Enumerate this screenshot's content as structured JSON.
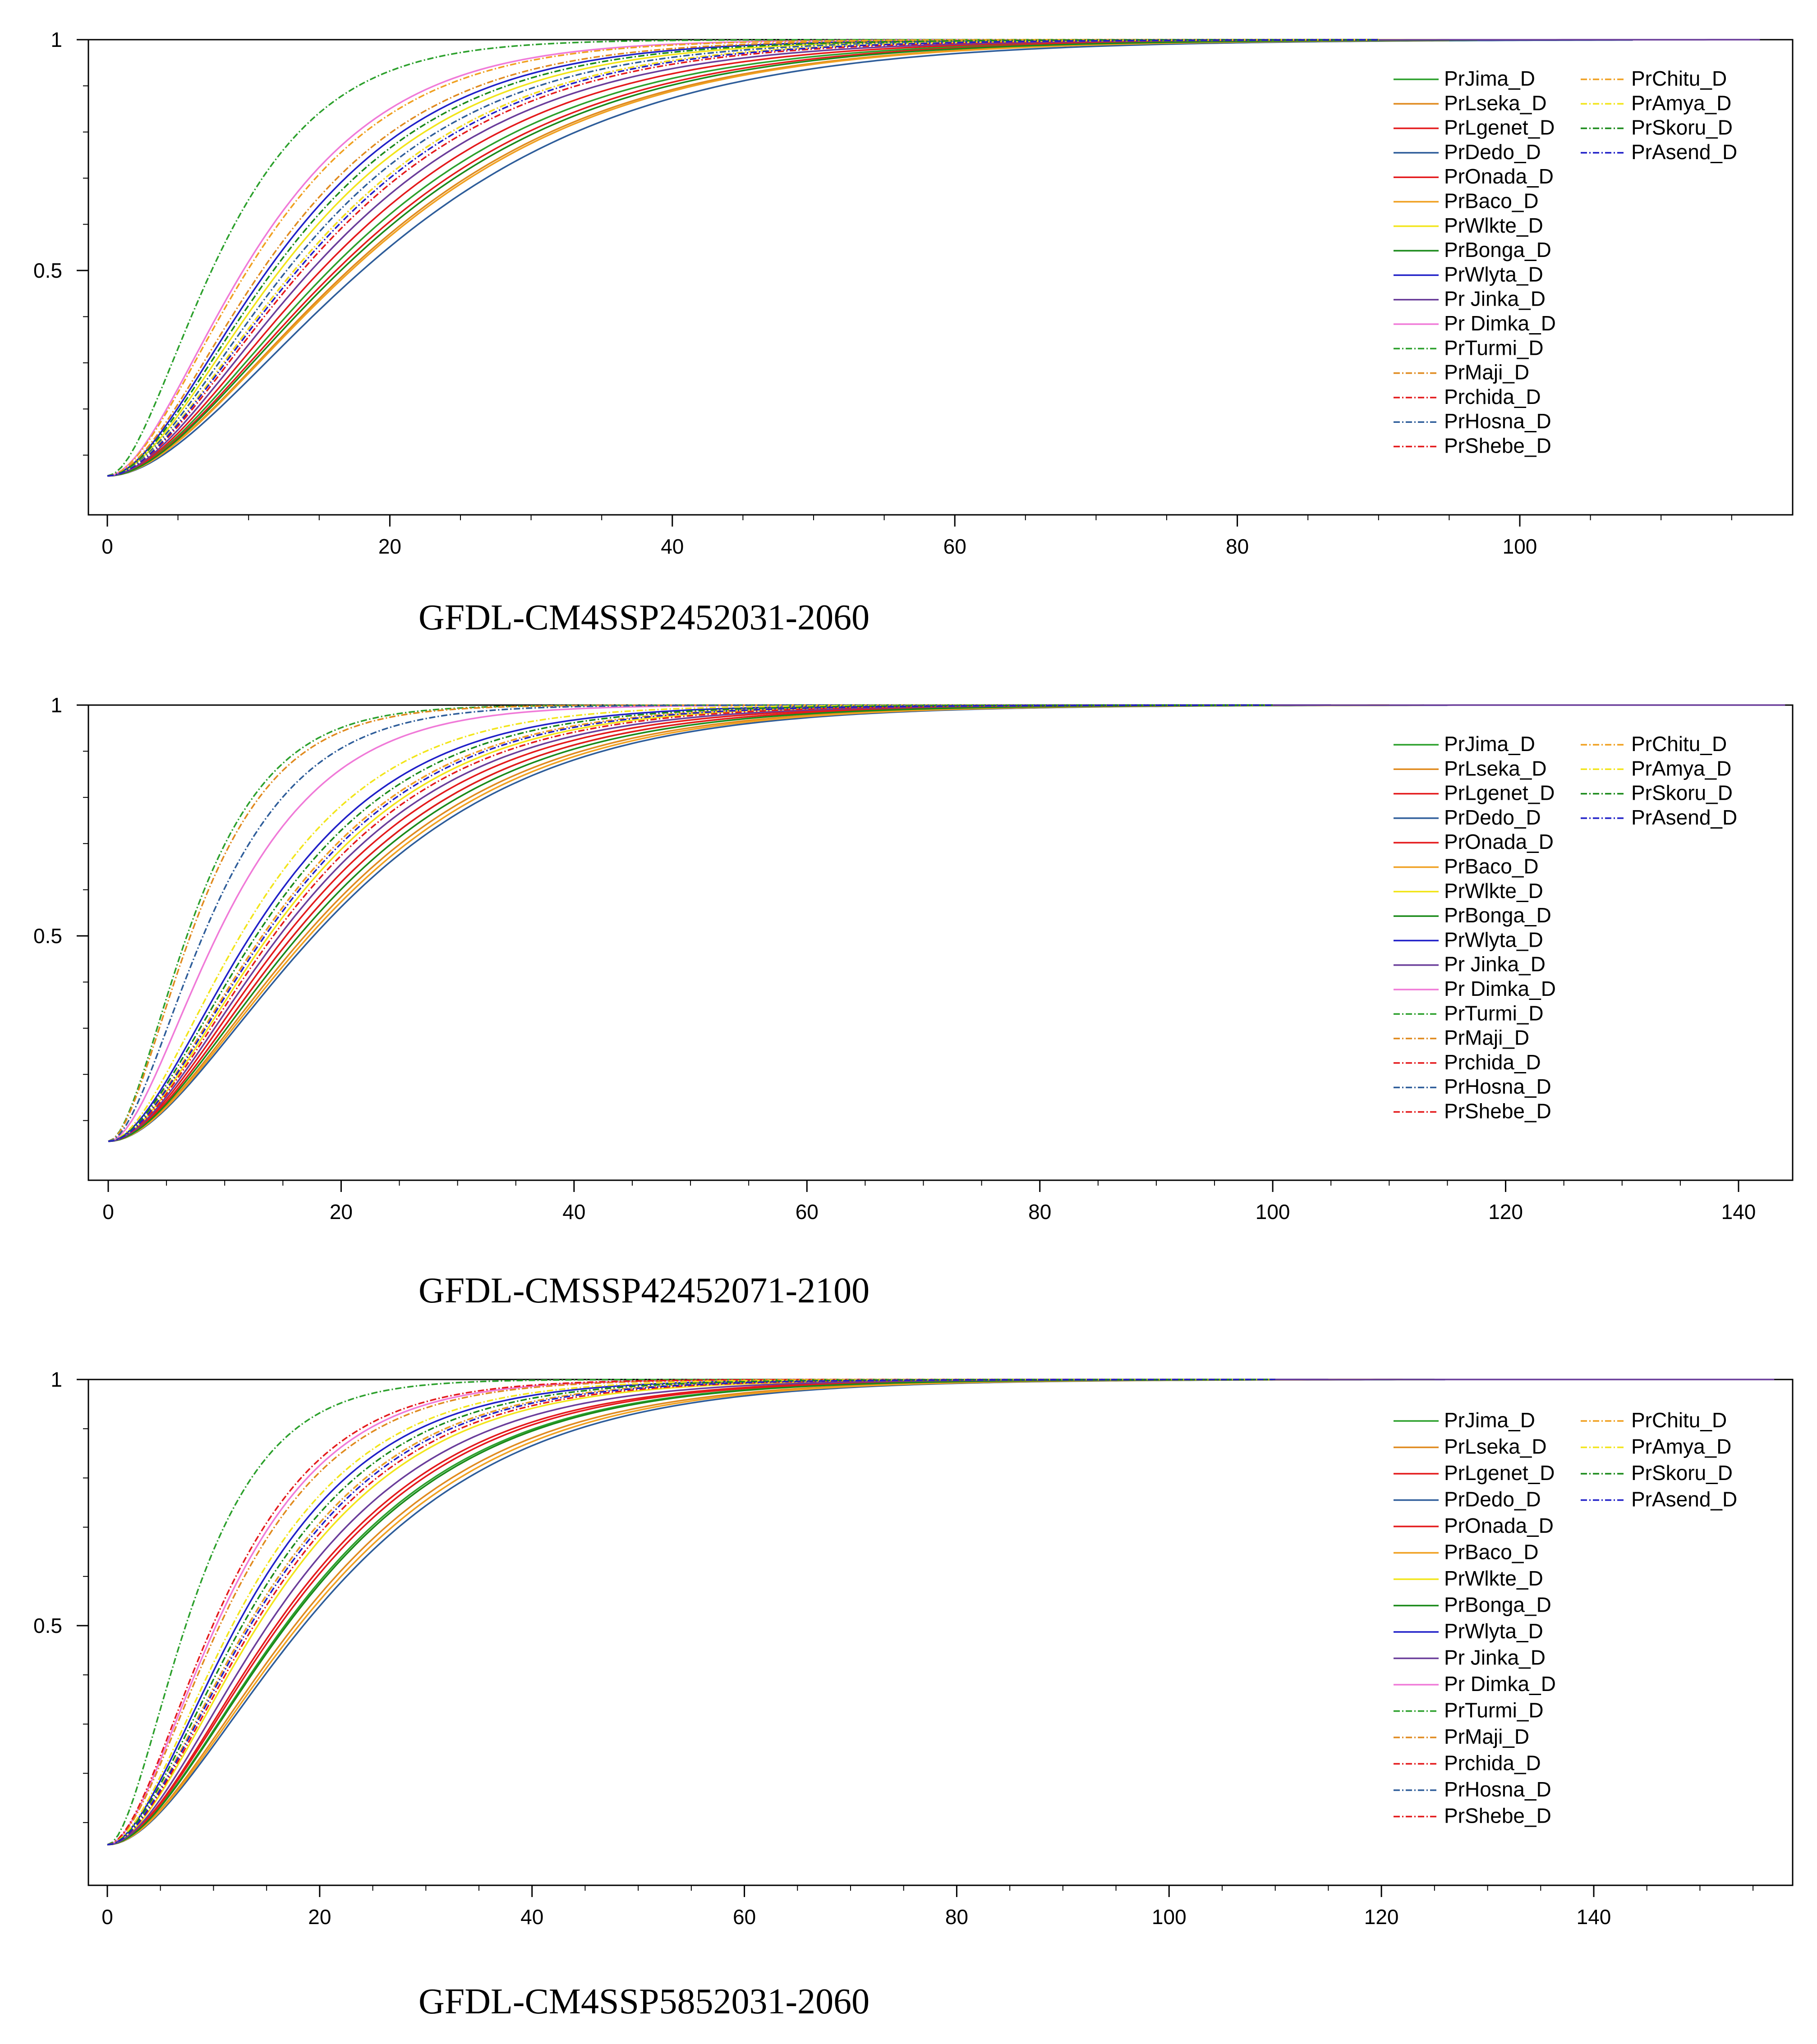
{
  "chart_data": [
    {
      "type": "line",
      "title": "",
      "caption": "GFDL-CM4SSP2452031-2060",
      "xlabel": "",
      "ylabel": "",
      "xlim": [
        0,
        118
      ],
      "ylim": [
        0,
        1
      ],
      "x_ticks": [
        0,
        20,
        40,
        60,
        80,
        100
      ],
      "x_minor_step": 5,
      "y_ticks": [
        {
          "v": 0.5,
          "label": "0.5"
        },
        {
          "v": 1,
          "label": "1"
        }
      ],
      "y_minor_step": 0.1,
      "legend_position": "top-right",
      "series": [
        {
          "name": "PrJima_D",
          "color": "#2ca02c",
          "dashed": false,
          "k": 0.101,
          "x_end": 97
        },
        {
          "name": "PrLseka_D",
          "color": "#e08a1e",
          "dashed": false,
          "k": 0.093,
          "x_end": 95
        },
        {
          "name": "PrLgenet_D",
          "color": "#e41a1c",
          "dashed": false,
          "k": 0.105,
          "x_end": 92
        },
        {
          "name": "PrDedo_D",
          "color": "#2e5d9a",
          "dashed": false,
          "k": 0.088,
          "x_end": 108
        },
        {
          "name": "PrOnada_D",
          "color": "#e41a1c",
          "dashed": false,
          "k": 0.098,
          "x_end": 95
        },
        {
          "name": "PrBaco_D",
          "color": "#f0a020",
          "dashed": false,
          "k": 0.092,
          "x_end": 95
        },
        {
          "name": "PrWlkte_D",
          "color": "#f2e51a",
          "dashed": false,
          "k": 0.13,
          "x_end": 95
        },
        {
          "name": "PrBonga_D",
          "color": "#1a8a1a",
          "dashed": false,
          "k": 0.096,
          "x_end": 97
        },
        {
          "name": "PrWlyta_D",
          "color": "#2020c8",
          "dashed": false,
          "k": 0.14,
          "x_end": 90
        },
        {
          "name": "Pr Jinka_D",
          "color": "#6a3d9a",
          "dashed": false,
          "k": 0.11,
          "x_end": 117
        },
        {
          "name": "Pr Dimka_D",
          "color": "#f07ad8",
          "dashed": false,
          "k": 0.165,
          "x_end": 90
        },
        {
          "name": "PrTurmi_D",
          "color": "#2ca02c",
          "dashed": true,
          "k": 0.215,
          "x_end": 90
        },
        {
          "name": "PrMaji_D",
          "color": "#e08a1e",
          "dashed": true,
          "k": 0.145,
          "x_end": 90
        },
        {
          "name": "Prchida_D",
          "color": "#e41a1c",
          "dashed": true,
          "k": 0.12,
          "x_end": 90
        },
        {
          "name": "PrHosna_D",
          "color": "#2e5d9a",
          "dashed": true,
          "k": 0.125,
          "x_end": 90
        },
        {
          "name": "PrShebe_D",
          "color": "#e41a1c",
          "dashed": true,
          "k": 0.115,
          "x_end": 90
        },
        {
          "name": "PrChitu_D",
          "color": "#f0a020",
          "dashed": true,
          "k": 0.16,
          "x_end": 90
        },
        {
          "name": "PrAmya_D",
          "color": "#f2e51a",
          "dashed": true,
          "k": 0.12,
          "x_end": 90
        },
        {
          "name": "PrSkoru_D",
          "color": "#1a8a1a",
          "dashed": true,
          "k": 0.135,
          "x_end": 90
        },
        {
          "name": "PrAsend_D",
          "color": "#2020c8",
          "dashed": true,
          "k": 0.118,
          "x_end": 90
        }
      ]
    },
    {
      "type": "line",
      "title": "",
      "caption": "GFDL-CMSSP42452071-2100",
      "xlabel": "",
      "ylabel": "",
      "xlim": [
        0,
        145
      ],
      "ylim": [
        0,
        1
      ],
      "x_ticks": [
        0,
        20,
        40,
        60,
        80,
        100,
        120,
        140
      ],
      "x_minor_step": 5,
      "y_ticks": [
        {
          "v": 0.5,
          "label": "0.5"
        },
        {
          "v": 1,
          "label": "1"
        }
      ],
      "y_minor_step": 0.1,
      "legend_position": "top-right",
      "series": [
        {
          "name": "PrJima_D",
          "color": "#2ca02c",
          "dashed": false,
          "k": 0.1,
          "x_end": 113
        },
        {
          "name": "PrLseka_D",
          "color": "#e08a1e",
          "dashed": false,
          "k": 0.094,
          "x_end": 113
        },
        {
          "name": "PrLgenet_D",
          "color": "#e41a1c",
          "dashed": false,
          "k": 0.104,
          "x_end": 110
        },
        {
          "name": "PrDedo_D",
          "color": "#2e5d9a",
          "dashed": false,
          "k": 0.09,
          "x_end": 115
        },
        {
          "name": "PrOnada_D",
          "color": "#e41a1c",
          "dashed": false,
          "k": 0.1,
          "x_end": 110
        },
        {
          "name": "PrBaco_D",
          "color": "#f0a020",
          "dashed": false,
          "k": 0.092,
          "x_end": 113
        },
        {
          "name": "PrWlkte_D",
          "color": "#f2e51a",
          "dashed": false,
          "k": 0.115,
          "x_end": 110
        },
        {
          "name": "PrBonga_D",
          "color": "#1a8a1a",
          "dashed": false,
          "k": 0.097,
          "x_end": 113
        },
        {
          "name": "PrWlyta_D",
          "color": "#2020c8",
          "dashed": false,
          "k": 0.13,
          "x_end": 105
        },
        {
          "name": "Pr Jinka_D",
          "color": "#6a3d9a",
          "dashed": false,
          "k": 0.108,
          "x_end": 144
        },
        {
          "name": "Pr Dimka_D",
          "color": "#f07ad8",
          "dashed": false,
          "k": 0.17,
          "x_end": 100
        },
        {
          "name": "PrTurmi_D",
          "color": "#2ca02c",
          "dashed": true,
          "k": 0.235,
          "x_end": 100
        },
        {
          "name": "PrMaji_D",
          "color": "#e08a1e",
          "dashed": true,
          "k": 0.225,
          "x_end": 100
        },
        {
          "name": "Prchida_D",
          "color": "#e41a1c",
          "dashed": true,
          "k": 0.12,
          "x_end": 100
        },
        {
          "name": "PrHosna_D",
          "color": "#2e5d9a",
          "dashed": true,
          "k": 0.195,
          "x_end": 100
        },
        {
          "name": "PrShebe_D",
          "color": "#e41a1c",
          "dashed": true,
          "k": 0.112,
          "x_end": 100
        },
        {
          "name": "PrChitu_D",
          "color": "#f0a020",
          "dashed": true,
          "k": 0.12,
          "x_end": 100
        },
        {
          "name": "PrAmya_D",
          "color": "#f2e51a",
          "dashed": true,
          "k": 0.14,
          "x_end": 100
        },
        {
          "name": "PrSkoru_D",
          "color": "#1a8a1a",
          "dashed": true,
          "k": 0.125,
          "x_end": 100
        },
        {
          "name": "PrAsend_D",
          "color": "#2020c8",
          "dashed": true,
          "k": 0.118,
          "x_end": 100
        }
      ]
    },
    {
      "type": "line",
      "title": "",
      "caption": "GFDL-CM4SSP5852031-2060",
      "xlabel": "",
      "ylabel": "",
      "xlim": [
        0,
        158
      ],
      "ylim": [
        0,
        1
      ],
      "x_ticks": [
        0,
        20,
        40,
        60,
        80,
        100,
        120,
        140
      ],
      "x_minor_step": 5,
      "y_ticks": [
        {
          "v": 0.5,
          "label": "0.5"
        },
        {
          "v": 1,
          "label": "1"
        }
      ],
      "y_minor_step": 0.1,
      "legend_position": "top-right",
      "series": [
        {
          "name": "PrJima_D",
          "color": "#2ca02c",
          "dashed": false,
          "k": 0.095,
          "x_end": 125
        },
        {
          "name": "PrLseka_D",
          "color": "#e08a1e",
          "dashed": false,
          "k": 0.09,
          "x_end": 125
        },
        {
          "name": "PrLgenet_D",
          "color": "#e41a1c",
          "dashed": false,
          "k": 0.1,
          "x_end": 122
        },
        {
          "name": "PrDedo_D",
          "color": "#2e5d9a",
          "dashed": false,
          "k": 0.086,
          "x_end": 126
        },
        {
          "name": "PrOnada_D",
          "color": "#e41a1c",
          "dashed": false,
          "k": 0.098,
          "x_end": 122
        },
        {
          "name": "PrBaco_D",
          "color": "#f0a020",
          "dashed": false,
          "k": 0.088,
          "x_end": 125
        },
        {
          "name": "PrWlkte_D",
          "color": "#f2e51a",
          "dashed": false,
          "k": 0.112,
          "x_end": 122
        },
        {
          "name": "PrBonga_D",
          "color": "#1a8a1a",
          "dashed": false,
          "k": 0.094,
          "x_end": 125
        },
        {
          "name": "PrWlyta_D",
          "color": "#2020c8",
          "dashed": false,
          "k": 0.13,
          "x_end": 115
        },
        {
          "name": "Pr Jinka_D",
          "color": "#6a3d9a",
          "dashed": false,
          "k": 0.105,
          "x_end": 157
        },
        {
          "name": "Pr Dimka_D",
          "color": "#f07ad8",
          "dashed": false,
          "k": 0.155,
          "x_end": 110
        },
        {
          "name": "PrTurmi_D",
          "color": "#2ca02c",
          "dashed": true,
          "k": 0.215,
          "x_end": 110
        },
        {
          "name": "PrMaji_D",
          "color": "#e08a1e",
          "dashed": true,
          "k": 0.15,
          "x_end": 110
        },
        {
          "name": "Prchida_D",
          "color": "#e41a1c",
          "dashed": true,
          "k": 0.16,
          "x_end": 110
        },
        {
          "name": "PrHosna_D",
          "color": "#2e5d9a",
          "dashed": true,
          "k": 0.12,
          "x_end": 110
        },
        {
          "name": "PrShebe_D",
          "color": "#e41a1c",
          "dashed": true,
          "k": 0.115,
          "x_end": 110
        },
        {
          "name": "PrChitu_D",
          "color": "#f0a020",
          "dashed": true,
          "k": 0.12,
          "x_end": 110
        },
        {
          "name": "PrAmya_D",
          "color": "#f2e51a",
          "dashed": true,
          "k": 0.135,
          "x_end": 110
        },
        {
          "name": "PrSkoru_D",
          "color": "#1a8a1a",
          "dashed": true,
          "k": 0.125,
          "x_end": 110
        },
        {
          "name": "PrAsend_D",
          "color": "#2020c8",
          "dashed": true,
          "k": 0.118,
          "x_end": 110
        }
      ]
    }
  ]
}
